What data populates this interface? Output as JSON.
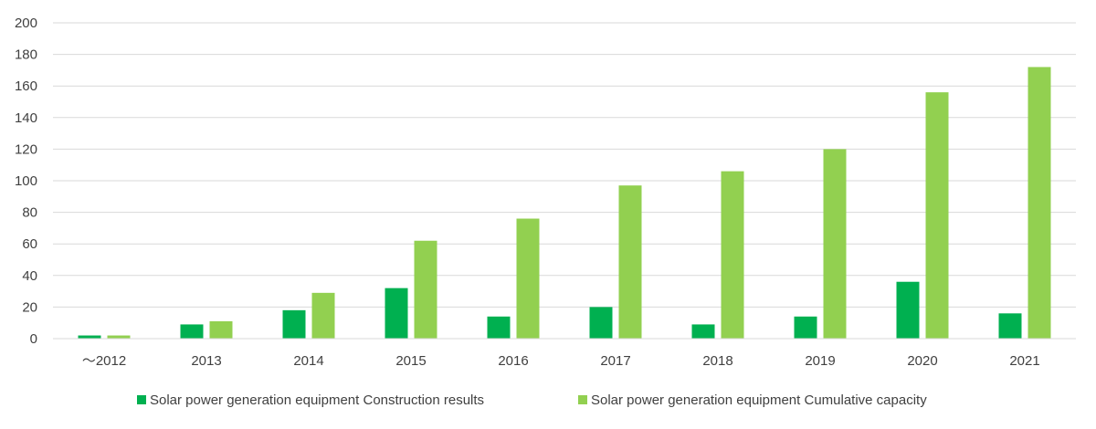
{
  "chart_data": {
    "type": "bar",
    "categories": [
      "～2012",
      "2013",
      "2014",
      "2015",
      "2016",
      "2017",
      "2018",
      "2019",
      "2020",
      "2021"
    ],
    "series": [
      {
        "name": "Solar power generation equipment Construction results",
        "color": "#00b050",
        "values": [
          2,
          9,
          18,
          32,
          14,
          20,
          9,
          14,
          36,
          16
        ]
      },
      {
        "name": "Solar power generation equipment Cumulative capacity",
        "color": "#92d050",
        "values": [
          2,
          11,
          29,
          62,
          76,
          97,
          106,
          120,
          156,
          172
        ]
      }
    ],
    "ylim": [
      0,
      200
    ],
    "yticks": [
      0,
      20,
      40,
      60,
      80,
      100,
      120,
      140,
      160,
      180,
      200
    ],
    "grid": true,
    "legend_position": "bottom"
  }
}
